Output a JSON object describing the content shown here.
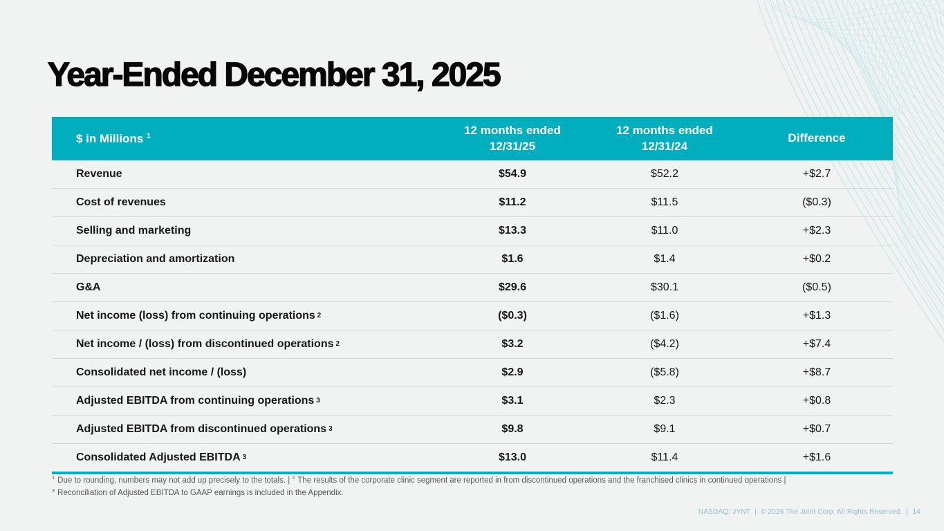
{
  "title": "Year-Ended December 31, 2025",
  "accent_color": "#00aebd",
  "table": {
    "header": {
      "label": "$ in Millions",
      "label_sup": "1",
      "col_2025_line1": "12 months ended",
      "col_2025_line2": "12/31/25",
      "col_2024_line1": "12 months ended",
      "col_2024_line2": "12/31/24",
      "col_diff": "Difference"
    },
    "rows": [
      {
        "label": "Revenue",
        "v2025": "$54.9",
        "v2024": "$52.2",
        "diff": "+$2.7"
      },
      {
        "label": "Cost of revenues",
        "v2025": "$11.2",
        "v2024": "$11.5",
        "diff": "($0.3)"
      },
      {
        "label": "Selling and marketing",
        "v2025": "$13.3",
        "v2024": "$11.0",
        "diff": "+$2.3"
      },
      {
        "label": "Depreciation and amortization",
        "v2025": "$1.6",
        "v2024": "$1.4",
        "diff": "+$0.2"
      },
      {
        "label": "G&A",
        "v2025": "$29.6",
        "v2024": "$30.1",
        "diff": "($0.5)"
      },
      {
        "label": "Net income (loss) from continuing operations",
        "sup": "2",
        "v2025": "($0.3)",
        "v2024": "($1.6)",
        "diff": "+$1.3"
      },
      {
        "label": "Net income / (loss) from discontinued operations",
        "sup": "2",
        "v2025": "$3.2",
        "v2024": "($4.2)",
        "diff": "+$7.4"
      },
      {
        "label": "Consolidated net income / (loss)",
        "v2025": "$2.9",
        "v2024": "($5.8)",
        "diff": "+$8.7"
      },
      {
        "label": "Adjusted EBITDA from continuing operations",
        "sup": "3",
        "v2025": "$3.1",
        "v2024": "$2.3",
        "diff": "+$0.8"
      },
      {
        "label": "Adjusted EBITDA from discontinued operations",
        "sup": "3",
        "v2025": "$9.8",
        "v2024": "$9.1",
        "diff": "+$0.7"
      },
      {
        "label": "Consolidated Adjusted EBITDA",
        "sup": "3",
        "v2025": "$13.0",
        "v2024": "$11.4",
        "diff": "+$1.6"
      }
    ]
  },
  "footnotes": {
    "line1": [
      {
        "sup": "1",
        "text": " Due to rounding, numbers may not add up precisely to the totals. | "
      },
      {
        "sup": "2",
        "text": " The results of the corporate clinic segment are reported in from discontinued operations and the franchised clinics in continued operations |"
      }
    ],
    "line2": [
      {
        "sup": "3",
        "text": " Reconciliation of Adjusted EBITDA to GAAP earnings is included in the Appendix."
      }
    ]
  },
  "footer": {
    "ticker": "NASDAQ: JYNT",
    "separator": "|",
    "copyright": "© 2026 The Joint Corp. All Rights Reserved.",
    "page_number": "14"
  }
}
